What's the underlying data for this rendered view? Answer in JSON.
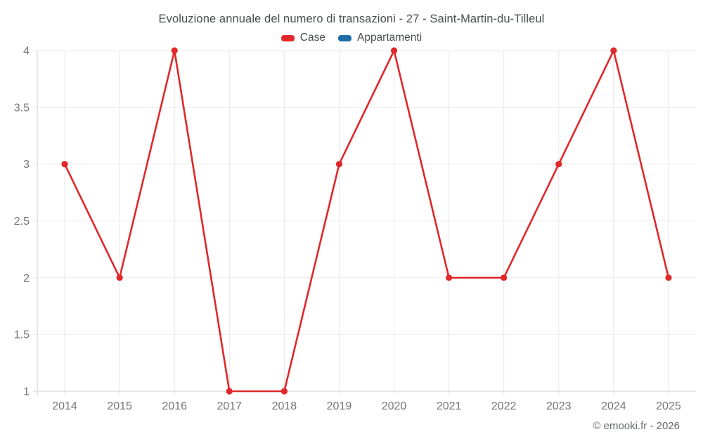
{
  "chart_data": {
    "type": "line",
    "title": "Evoluzione annuale del numero di transazioni - 27 - Saint-Martin-du-Tilleul",
    "categories": [
      "2014",
      "2015",
      "2016",
      "2017",
      "2018",
      "2019",
      "2020",
      "2021",
      "2022",
      "2023",
      "2024",
      "2025"
    ],
    "series": [
      {
        "name": "Case",
        "color": "#e0282b",
        "marker": "circle",
        "values": [
          3,
          2,
          4,
          1,
          1,
          3,
          4,
          2,
          2,
          3,
          4,
          2
        ]
      },
      {
        "name": "Appartamenti",
        "color": "#1c6ea4",
        "marker": "circle",
        "values": []
      }
    ],
    "ylim": [
      1,
      4
    ],
    "ytick_step": 0.5,
    "ytick_labels": [
      "1",
      "1.5",
      "2",
      "2.5",
      "3",
      "3.5",
      "4"
    ],
    "xlabel": "",
    "ylabel": "",
    "grid": true,
    "legend_position": "top"
  },
  "footer": {
    "credit": "© emooki.fr - 2026"
  }
}
